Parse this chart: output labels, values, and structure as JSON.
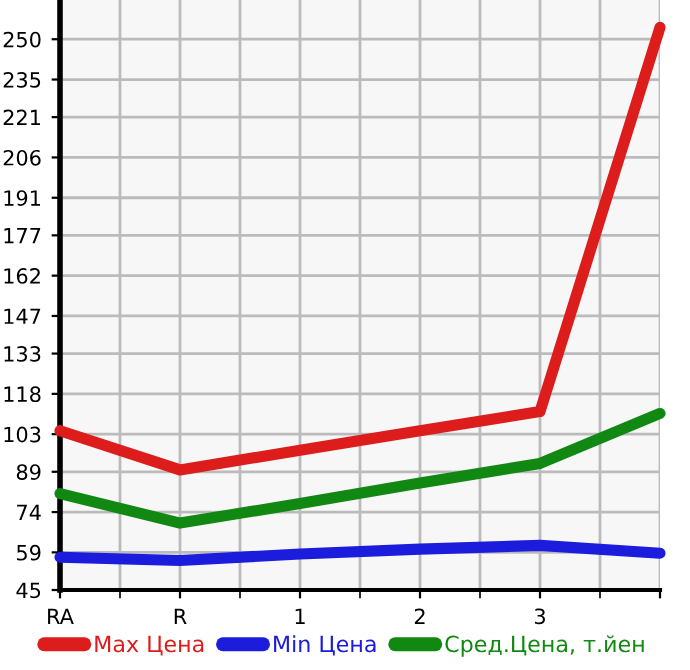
{
  "chart_data": {
    "type": "line",
    "categories": [
      "RA",
      "R",
      "1",
      "2",
      "3",
      null
    ],
    "series": [
      {
        "name": "Max Цена",
        "color": "#dd1c1c",
        "values": [
          104.3,
          89.7,
          97,
          104.3,
          111.4,
          254.4
        ]
      },
      {
        "name": "Min Цена",
        "color": "#1c1cdd",
        "values": [
          57.2,
          56,
          58.4,
          60.2,
          61.6,
          58.7
        ]
      },
      {
        "name": "Сред.Цена, т.йен",
        "color": "#118811",
        "values": [
          80.9,
          69.9,
          77.2,
          84.8,
          92.1,
          110.7
        ]
      }
    ],
    "ylim": [
      45,
      264.6
    ],
    "yticks": [
      45,
      59,
      74,
      89,
      103,
      118,
      133,
      147,
      162,
      177,
      191,
      206,
      221,
      235,
      250
    ],
    "grid": true,
    "legend": "bottom",
    "marker": "none",
    "line_style": "solid"
  }
}
